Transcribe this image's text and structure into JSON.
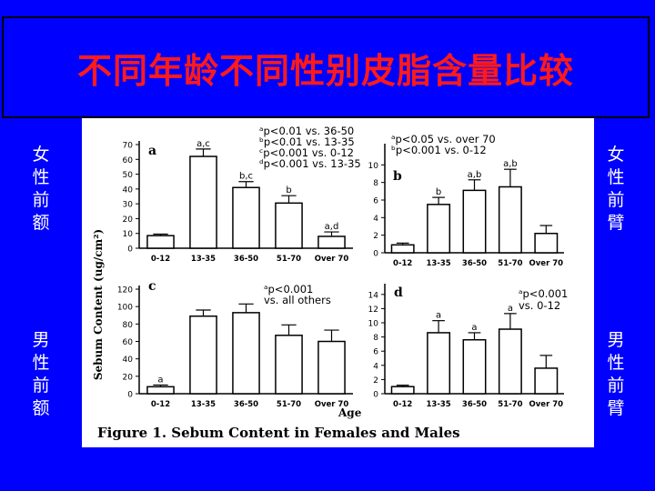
{
  "slide": {
    "title": "不同年龄不同性别皮脂含量比较",
    "label_female_forehead": "女性前额",
    "label_female_forearm": "女性前臂",
    "label_male_forehead": "男性前额",
    "label_male_forearm": "男性前臂"
  },
  "figure": {
    "caption": "Figure 1. Sebum Content in Females and Males",
    "ylabel": "Sebum Content (ug/cm²)",
    "xlabel": "Age"
  },
  "chart_data": [
    {
      "type": "bar",
      "panel": "a",
      "categories": [
        "0-12",
        "13-35",
        "36-50",
        "51-70",
        "Over 70"
      ],
      "values": [
        8.5,
        62,
        41,
        30.5,
        8
      ],
      "errors": [
        1,
        5,
        4,
        5,
        3
      ],
      "bar_labels": [
        "",
        "a,c",
        "b,c",
        "b",
        "a,d"
      ],
      "ylim": [
        0,
        70
      ],
      "yticks": [
        0,
        10,
        20,
        30,
        40,
        50,
        60,
        70
      ],
      "annotations": [
        "ᵃp<0.01 vs. 36-50",
        "ᵇp<0.01 vs. 13-35",
        "ᶜp<0.001 vs. 0-12",
        "ᵈp<0.001 vs. 13-35"
      ]
    },
    {
      "type": "bar",
      "panel": "b",
      "categories": [
        "0-12",
        "13-35",
        "36-50",
        "51-70",
        "Over 70"
      ],
      "values": [
        0.9,
        5.5,
        7.1,
        7.5,
        2.2
      ],
      "errors": [
        0.2,
        0.8,
        1.2,
        2.0,
        0.9
      ],
      "bar_labels": [
        "",
        "b",
        "a,b",
        "a,b",
        ""
      ],
      "ylim": [
        0,
        12
      ],
      "yticks": [
        0,
        2,
        4,
        6,
        8,
        10
      ],
      "annotations": [
        "ᵃp<0.05 vs. over 70",
        "ᵇp<0.001 vs. 0-12"
      ]
    },
    {
      "type": "bar",
      "panel": "c",
      "categories": [
        "0-12",
        "13-35",
        "36-50",
        "51-70",
        "Over 70"
      ],
      "values": [
        8,
        89,
        93,
        67,
        60
      ],
      "errors": [
        2,
        7,
        10,
        12,
        13
      ],
      "bar_labels": [
        "a",
        "",
        "",
        "",
        ""
      ],
      "ylim": [
        0,
        120
      ],
      "yticks": [
        0,
        20,
        40,
        60,
        80,
        100,
        120
      ],
      "annotations": [
        "ᵃp<0.001",
        "vs. all others"
      ]
    },
    {
      "type": "bar",
      "panel": "d",
      "categories": [
        "0-12",
        "13-35",
        "36-50",
        "51-70",
        "Over 70"
      ],
      "values": [
        1,
        8.6,
        7.6,
        9.1,
        3.6
      ],
      "errors": [
        0.2,
        1.7,
        1.0,
        2.2,
        1.8
      ],
      "bar_labels": [
        "",
        "a",
        "a",
        "a",
        ""
      ],
      "ylim": [
        0,
        15
      ],
      "yticks": [
        0,
        2,
        4,
        6,
        8,
        10,
        12,
        14
      ],
      "annotations": [
        "ᵃp<0.001",
        "vs. 0-12"
      ]
    }
  ]
}
